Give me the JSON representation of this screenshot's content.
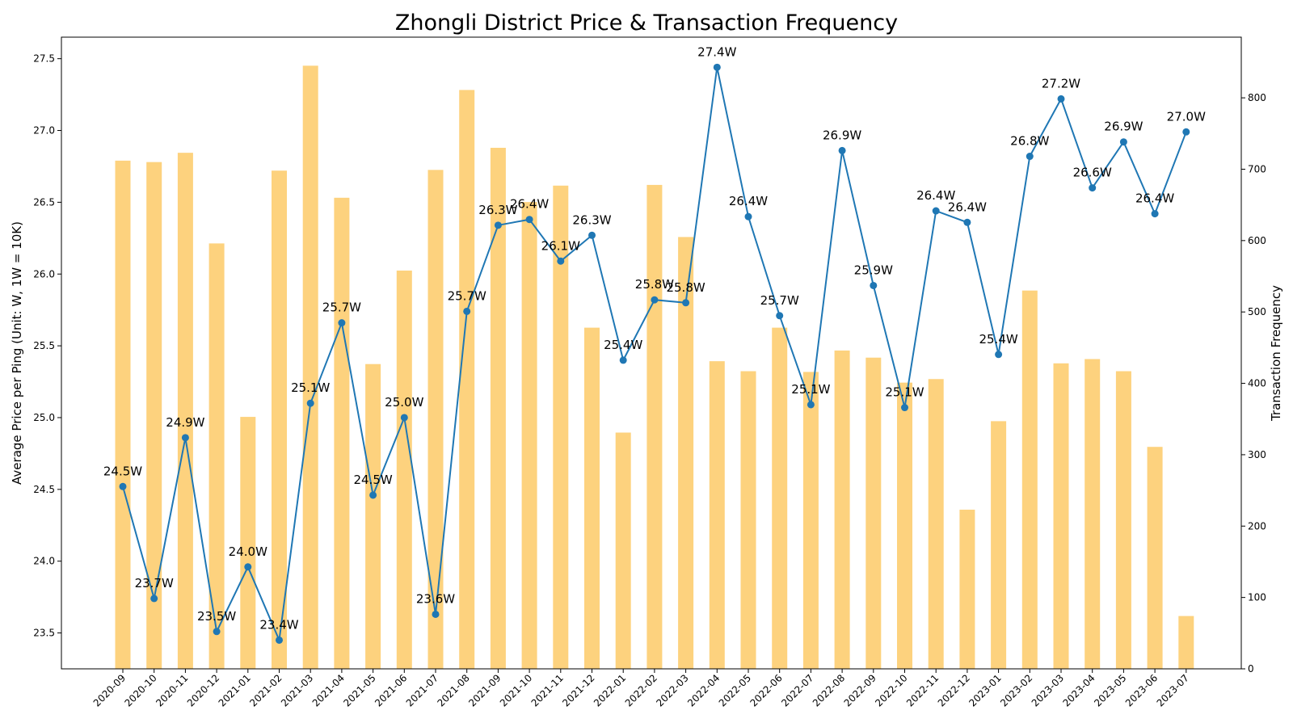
{
  "chart_data": {
    "type": "bar+line",
    "title": "Zhongli District Price & Transaction Frequency",
    "ylabel_left": "Average Price per Ping (Unit: W, 1W = 10K)",
    "ylabel_right": "Transaction Frequency",
    "ylim_left": [
      23.25,
      27.65
    ],
    "ylim_right": [
      0,
      885
    ],
    "yticks_left": [
      "23.5",
      "24.0",
      "24.5",
      "25.0",
      "25.5",
      "26.0",
      "26.5",
      "27.0",
      "27.5"
    ],
    "yticks_right": [
      "0",
      "100",
      "200",
      "300",
      "400",
      "500",
      "600",
      "700",
      "800"
    ],
    "categories": [
      "2020-09",
      "2020-10",
      "2020-11",
      "2020-12",
      "2021-01",
      "2021-02",
      "2021-03",
      "2021-04",
      "2021-05",
      "2021-06",
      "2021-07",
      "2021-08",
      "2021-09",
      "2021-10",
      "2021-11",
      "2021-12",
      "2022-01",
      "2022-02",
      "2022-03",
      "2022-04",
      "2022-05",
      "2022-06",
      "2022-07",
      "2022-08",
      "2022-09",
      "2022-10",
      "2022-11",
      "2022-12",
      "2023-01",
      "2023-02",
      "2023-03",
      "2023-04",
      "2023-05",
      "2023-06",
      "2023-07"
    ],
    "price": [
      24.52,
      23.74,
      24.86,
      23.51,
      23.96,
      23.45,
      25.1,
      25.66,
      24.46,
      25.0,
      23.63,
      25.74,
      26.34,
      26.38,
      26.09,
      26.27,
      25.4,
      25.82,
      25.8,
      27.44,
      26.4,
      25.71,
      25.09,
      26.86,
      25.92,
      25.07,
      26.44,
      26.36,
      25.44,
      26.82,
      27.22,
      26.6,
      26.92,
      26.42,
      26.99
    ],
    "price_labels": [
      "24.5W",
      "23.7W",
      "24.9W",
      "23.5W",
      "24.0W",
      "23.4W",
      "25.1W",
      "25.7W",
      "24.5W",
      "25.0W",
      "23.6W",
      "25.7W",
      "26.3W",
      "26.4W",
      "26.1W",
      "26.3W",
      "25.4W",
      "25.8W",
      "25.8W",
      "27.4W",
      "26.4W",
      "25.7W",
      "25.1W",
      "26.9W",
      "25.9W",
      "25.1W",
      "26.4W",
      "26.4W",
      "25.4W",
      "26.8W",
      "27.2W",
      "26.6W",
      "26.9W",
      "26.4W",
      "27.0W"
    ],
    "frequency": [
      712,
      710,
      723,
      596,
      353,
      698,
      845,
      660,
      427,
      558,
      699,
      811,
      730,
      654,
      677,
      478,
      331,
      678,
      605,
      431,
      417,
      478,
      416,
      446,
      436,
      401,
      406,
      223,
      347,
      530,
      428,
      434,
      417,
      311,
      74
    ],
    "colors": {
      "bar": "#fdd27e",
      "line": "#1f77b4",
      "marker": "#1f77b4"
    },
    "grid": false
  }
}
